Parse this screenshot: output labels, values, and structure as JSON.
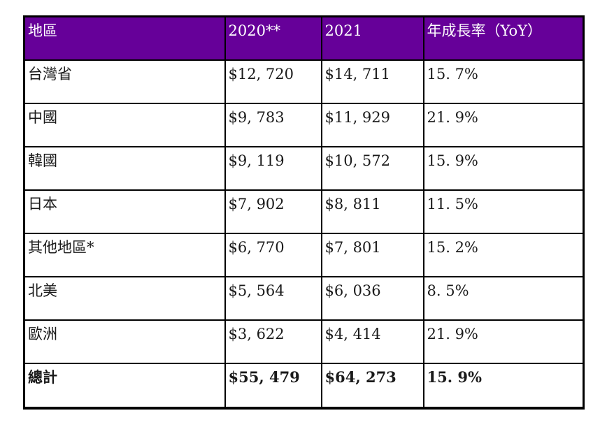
{
  "table": {
    "columns": {
      "region": "地區",
      "y2020": "2020**",
      "y2021": "2021",
      "yoy": "年成長率（YoY）"
    },
    "rows": [
      {
        "region": "台灣省",
        "y2020": "$12, 720",
        "y2021": "$14, 711",
        "yoy": "15. 7%"
      },
      {
        "region": "中國",
        "y2020": "$9, 783",
        "y2021": "$11, 929",
        "yoy": "21. 9%"
      },
      {
        "region": "韓國",
        "y2020": "$9, 119",
        "y2021": "$10, 572",
        "yoy": "15. 9%"
      },
      {
        "region": "日本",
        "y2020": "$7, 902",
        "y2021": "$8, 811",
        "yoy": "11. 5%"
      },
      {
        "region": "其他地區*",
        "y2020": "$6, 770",
        "y2021": "$7, 801",
        "yoy": "15. 2%"
      },
      {
        "region": "北美",
        "y2020": "$5, 564",
        "y2021": "$6, 036",
        "yoy": "8. 5%"
      },
      {
        "region": "歐洲",
        "y2020": "$3, 622",
        "y2021": "$4, 414",
        "yoy": "21. 9%"
      }
    ],
    "total_row": {
      "region": "總計",
      "y2020": "$55, 479",
      "y2021": "$64, 273",
      "yoy": "15. 9%"
    }
  },
  "colors": {
    "header_background": "#660099",
    "header_text": "#ffffff",
    "body_text": "#1a1a1a",
    "border": "#000000"
  }
}
